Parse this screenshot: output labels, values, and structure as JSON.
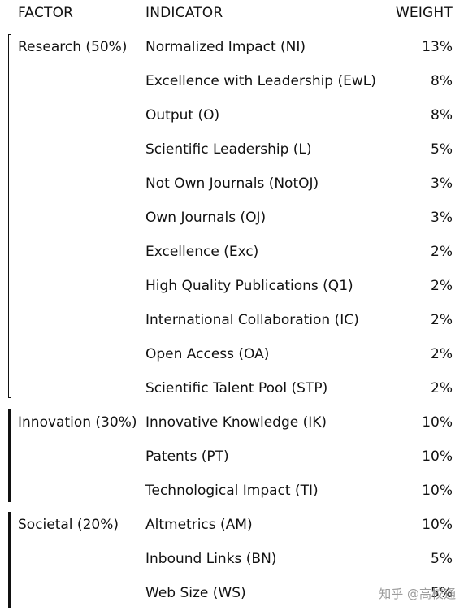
{
  "headers": {
    "factor": "FACTOR",
    "indicator": "INDICATOR",
    "weight": "WEIGHT"
  },
  "groups": [
    {
      "factor": "Research (50%)",
      "rows": [
        {
          "indicator": "Normalized Impact (NI)",
          "weight": "13%"
        },
        {
          "indicator": "Excellence with Leadership (EwL)",
          "weight": "8%"
        },
        {
          "indicator": "Output (O)",
          "weight": "8%"
        },
        {
          "indicator": "Scientific Leadership (L)",
          "weight": "5%"
        },
        {
          "indicator": "Not Own Journals (NotOJ)",
          "weight": "3%"
        },
        {
          "indicator": "Own Journals (OJ)",
          "weight": "3%"
        },
        {
          "indicator": "Excellence (Exc)",
          "weight": "2%"
        },
        {
          "indicator": "High Quality Publications (Q1)",
          "weight": "2%"
        },
        {
          "indicator": "International Collaboration (IC)",
          "weight": "2%"
        },
        {
          "indicator": "Open Access (OA)",
          "weight": "2%"
        },
        {
          "indicator": "Scientific Talent Pool (STP)",
          "weight": "2%"
        }
      ]
    },
    {
      "factor": "Innovation (30%)",
      "rows": [
        {
          "indicator": "Innovative Knowledge (IK)",
          "weight": "10%"
        },
        {
          "indicator": "Patents (PT)",
          "weight": "10%"
        },
        {
          "indicator": "Technological Impact (TI)",
          "weight": "10%"
        }
      ]
    },
    {
      "factor": "Societal (20%)",
      "rows": [
        {
          "indicator": "Altmetrics (AM)",
          "weight": "10%"
        },
        {
          "indicator": "Inbound Links (BN)",
          "weight": "5%"
        },
        {
          "indicator": "Web Size (WS)",
          "weight": "5%"
        }
      ]
    }
  ],
  "watermark": "知乎 @高校通"
}
